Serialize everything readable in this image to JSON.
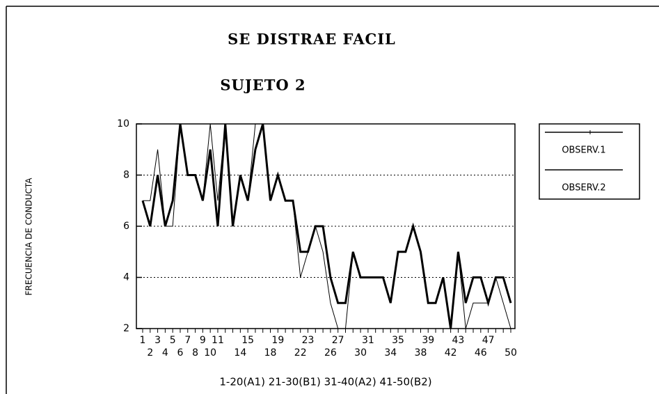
{
  "chart_data": {
    "type": "line",
    "title": "SE DISTRAE FACIL",
    "subtitle": "SUJETO 2",
    "y_label": "FRECUENCIA DE CONDUCTA",
    "x_label": "1-20(A1) 21-30(B1) 31-40(A2) 41-50(B2)",
    "categories": [
      "1",
      "2",
      "3",
      "4",
      "5",
      "6",
      "7",
      "8",
      "9",
      "10",
      "11",
      null,
      null,
      "14",
      "15",
      null,
      null,
      "18",
      "19",
      null,
      null,
      "22",
      "23",
      null,
      null,
      "26",
      "27",
      null,
      null,
      "30",
      "31",
      null,
      null,
      "34",
      "35",
      null,
      null,
      "38",
      "39",
      null,
      null,
      "42",
      "43",
      null,
      null,
      "46",
      "47",
      null,
      null,
      "50"
    ],
    "series": [
      {
        "name": "OBSERV.1",
        "color": "#000000",
        "line_width": 3,
        "values": [
          7,
          6,
          8,
          6,
          7,
          10,
          8,
          8,
          7,
          9,
          6,
          10,
          6,
          8,
          7,
          9,
          10,
          7,
          8,
          7,
          7,
          5,
          5,
          6,
          6,
          4,
          3,
          3,
          5,
          4,
          4,
          4,
          4,
          3,
          5,
          5,
          6,
          5,
          3,
          3,
          4,
          2,
          5,
          3,
          4,
          4,
          3,
          4,
          4,
          3
        ]
      },
      {
        "name": "OBSERV.2",
        "color": "#000000",
        "line_width": 1,
        "values": [
          7,
          7,
          9,
          6,
          6,
          10,
          8,
          8,
          7,
          10,
          7,
          10,
          6,
          8,
          7,
          10,
          10,
          7,
          8,
          7,
          7,
          4,
          5,
          6,
          5,
          3,
          2,
          2,
          5,
          4,
          4,
          4,
          4,
          3,
          5,
          5,
          6,
          5,
          3,
          3,
          4,
          2,
          5,
          2,
          3,
          3,
          3,
          4,
          3,
          2
        ]
      }
    ],
    "ylim": [
      2,
      10
    ],
    "yticks": [
      2,
      4,
      6,
      8,
      10
    ],
    "grid": true,
    "legend": "upper right"
  }
}
